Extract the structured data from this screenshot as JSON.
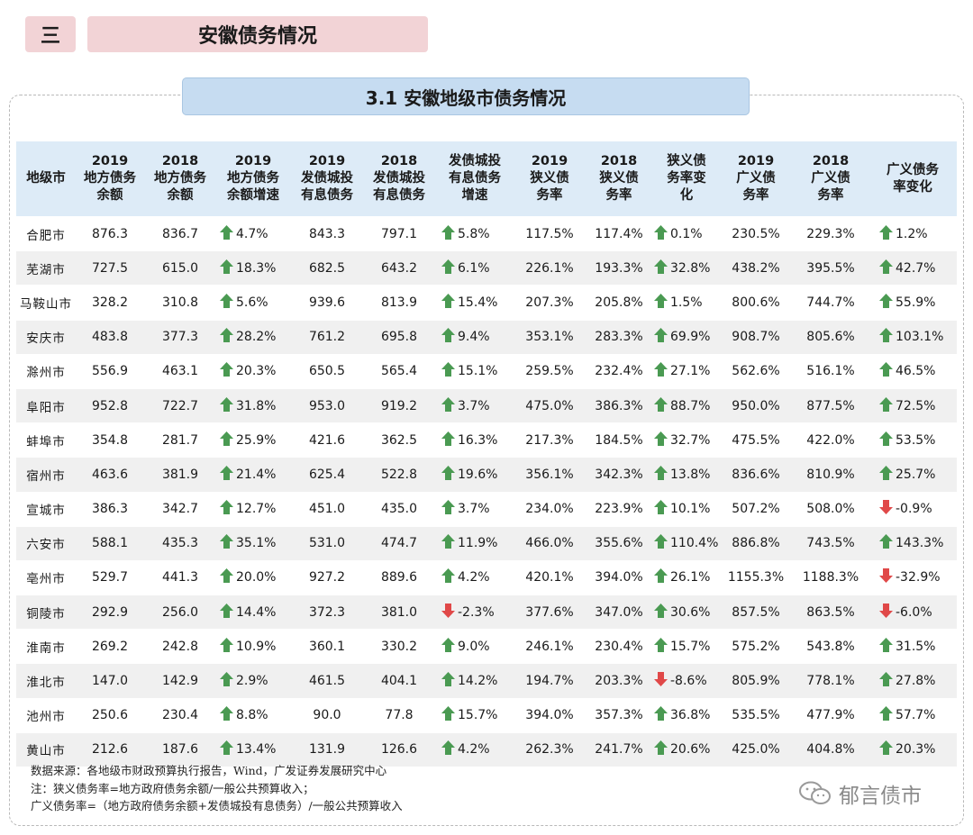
{
  "section": {
    "num": "三",
    "title": "安徽债务情况"
  },
  "subsection": {
    "title": "3.1  安徽地级市债务情况"
  },
  "table": {
    "headers": [
      [
        "地级市"
      ],
      [
        "2019",
        "地方债务",
        "余额"
      ],
      [
        "2018",
        "地方债务",
        "余额"
      ],
      [
        "2019",
        "地方债务",
        "余额增速"
      ],
      [
        "2019",
        "发债城投",
        "有息债务"
      ],
      [
        "2018",
        "发债城投",
        "有息债务"
      ],
      [
        "发债城投",
        "有息债务",
        "增速"
      ],
      [
        "2019",
        "狭义债",
        "务率"
      ],
      [
        "2018",
        "狭义债",
        "务率"
      ],
      [
        "狭义债",
        "务率变",
        "化"
      ],
      [
        "2019",
        "广义债",
        "务率"
      ],
      [
        "2018",
        "广义债",
        "务率"
      ],
      [
        "广义债务",
        "率变化"
      ]
    ],
    "rows": [
      [
        "合肥市",
        "876.3",
        "836.7",
        "4.7%",
        "843.3",
        "797.1",
        "5.8%",
        "117.5%",
        "117.4%",
        "0.1%",
        "230.5%",
        "229.3%",
        "1.2%"
      ],
      [
        "芜湖市",
        "727.5",
        "615.0",
        "18.3%",
        "682.5",
        "643.2",
        "6.1%",
        "226.1%",
        "193.3%",
        "32.8%",
        "438.2%",
        "395.5%",
        "42.7%"
      ],
      [
        "马鞍山市",
        "328.2",
        "310.8",
        "5.6%",
        "939.6",
        "813.9",
        "15.4%",
        "207.3%",
        "205.8%",
        "1.5%",
        "800.6%",
        "744.7%",
        "55.9%"
      ],
      [
        "安庆市",
        "483.8",
        "377.3",
        "28.2%",
        "761.2",
        "695.8",
        "9.4%",
        "353.1%",
        "283.3%",
        "69.9%",
        "908.7%",
        "805.6%",
        "103.1%"
      ],
      [
        "滁州市",
        "556.9",
        "463.1",
        "20.3%",
        "650.5",
        "565.4",
        "15.1%",
        "259.5%",
        "232.4%",
        "27.1%",
        "562.6%",
        "516.1%",
        "46.5%"
      ],
      [
        "阜阳市",
        "952.8",
        "722.7",
        "31.8%",
        "953.0",
        "919.2",
        "3.7%",
        "475.0%",
        "386.3%",
        "88.7%",
        "950.0%",
        "877.5%",
        "72.5%"
      ],
      [
        "蚌埠市",
        "354.8",
        "281.7",
        "25.9%",
        "421.6",
        "362.5",
        "16.3%",
        "217.3%",
        "184.5%",
        "32.7%",
        "475.5%",
        "422.0%",
        "53.5%"
      ],
      [
        "宿州市",
        "463.6",
        "381.9",
        "21.4%",
        "625.4",
        "522.8",
        "19.6%",
        "356.1%",
        "342.3%",
        "13.8%",
        "836.6%",
        "810.9%",
        "25.7%"
      ],
      [
        "宣城市",
        "386.3",
        "342.7",
        "12.7%",
        "451.0",
        "435.0",
        "3.7%",
        "234.0%",
        "223.9%",
        "10.1%",
        "507.2%",
        "508.0%",
        "-0.9%"
      ],
      [
        "六安市",
        "588.1",
        "435.3",
        "35.1%",
        "531.0",
        "474.7",
        "11.9%",
        "466.0%",
        "355.6%",
        "110.4%",
        "886.8%",
        "743.5%",
        "143.3%"
      ],
      [
        "亳州市",
        "529.7",
        "441.3",
        "20.0%",
        "927.2",
        "889.6",
        "4.2%",
        "420.1%",
        "394.0%",
        "26.1%",
        "1155.3%",
        "1188.3%",
        "-32.9%"
      ],
      [
        "铜陵市",
        "292.9",
        "256.0",
        "14.4%",
        "372.3",
        "381.0",
        "-2.3%",
        "377.6%",
        "347.0%",
        "30.6%",
        "857.5%",
        "863.5%",
        "-6.0%"
      ],
      [
        "淮南市",
        "269.2",
        "242.8",
        "10.9%",
        "360.1",
        "330.2",
        "9.0%",
        "246.1%",
        "230.4%",
        "15.7%",
        "575.2%",
        "543.8%",
        "31.5%"
      ],
      [
        "淮北市",
        "147.0",
        "142.9",
        "2.9%",
        "461.5",
        "404.1",
        "14.2%",
        "194.7%",
        "203.3%",
        "-8.6%",
        "805.9%",
        "778.1%",
        "27.8%"
      ],
      [
        "池州市",
        "250.6",
        "230.4",
        "8.8%",
        "90.0",
        "77.8",
        "15.7%",
        "394.0%",
        "357.3%",
        "36.8%",
        "535.5%",
        "477.9%",
        "57.7%"
      ],
      [
        "黄山市",
        "212.6",
        "187.6",
        "13.4%",
        "131.9",
        "126.6",
        "4.2%",
        "262.3%",
        "241.7%",
        "20.6%",
        "425.0%",
        "404.8%",
        "20.3%"
      ]
    ],
    "arrow_colors": {
      "up": "#4a9a52",
      "down": "#e04848"
    }
  },
  "notes": [
    "数据来源：各地级市财政预算执行报告，Wind，广发证券发展研究中心",
    "注：狭义债务率=地方政府债务余额/一般公共预算收入；",
    "广义债务率=（地方政府债务余额+发债城投有息债务）/一般公共预算收入"
  ],
  "watermark": {
    "text": "郁言债市",
    "icon": "wechat-icon"
  }
}
